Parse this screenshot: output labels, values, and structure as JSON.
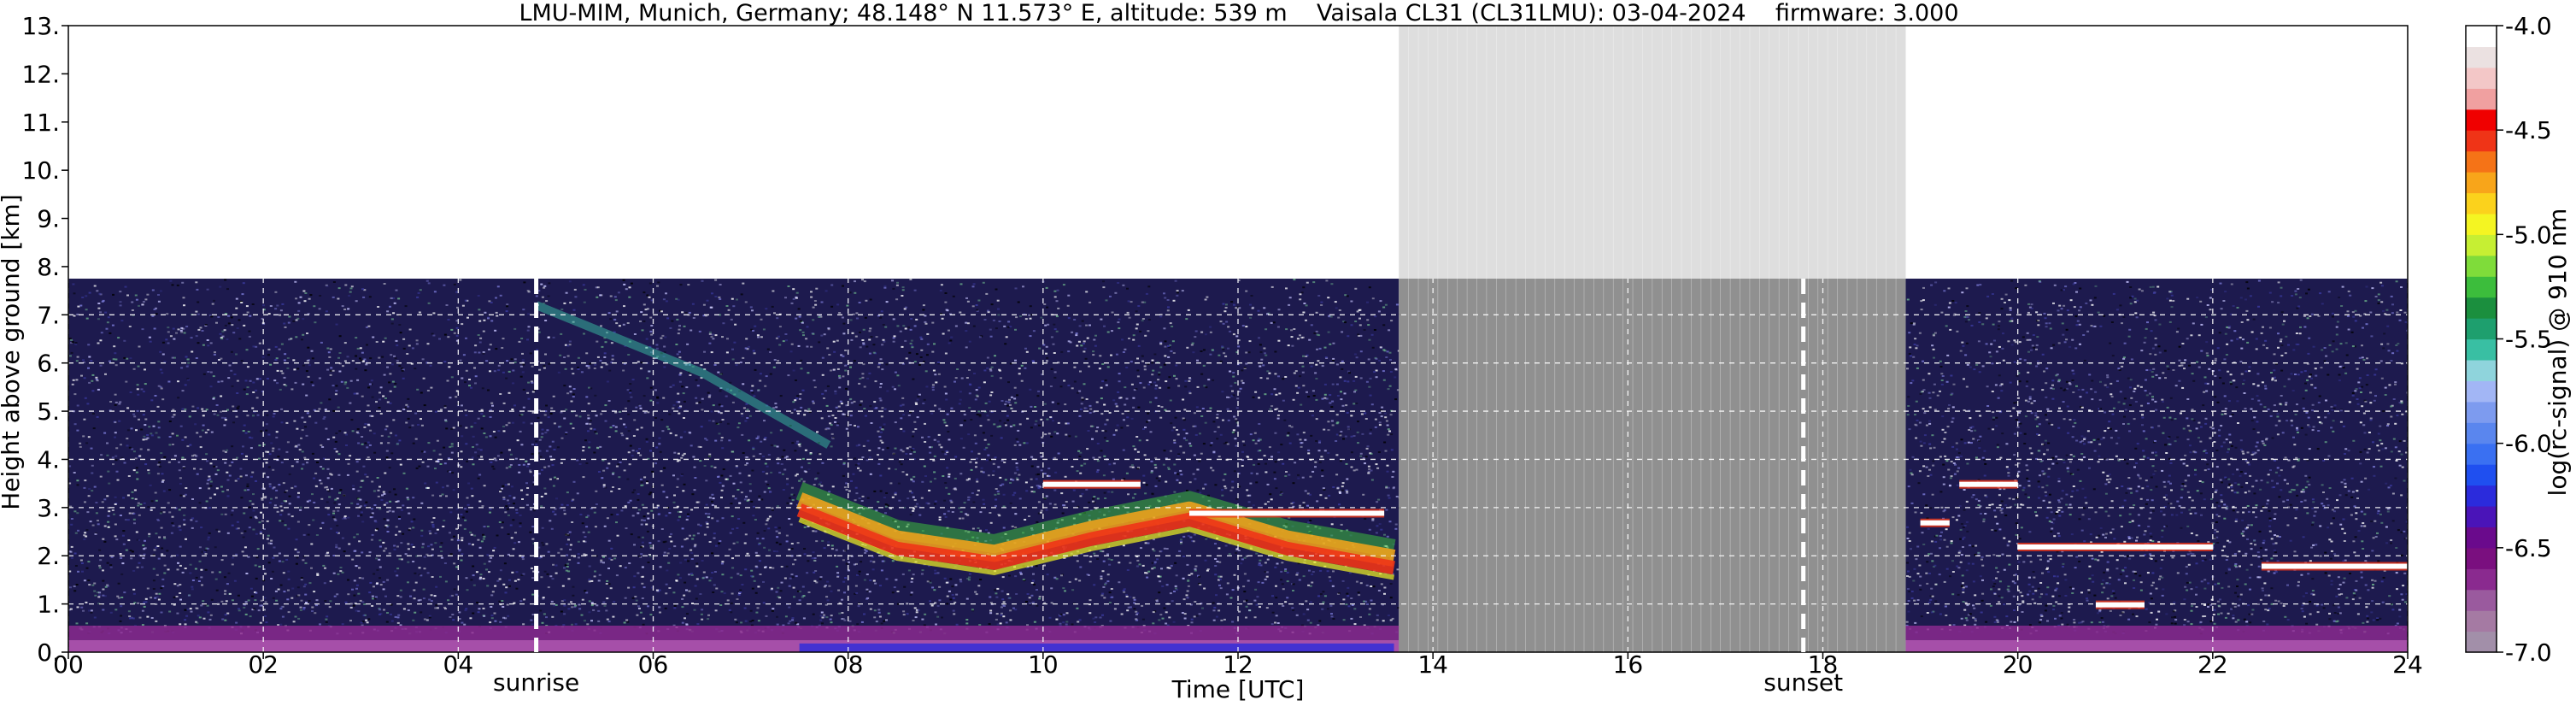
{
  "chart_data": {
    "type": "heatmap",
    "title": "LMU-MIM, Munich, Germany; 48.148° N 11.573° E, altitude: 539 m    Vaisala CL31 (CL31LMU): 03-04-2024    firmware: 3.000",
    "xlabel": "Time [UTC]",
    "ylabel": "Height above ground [km]",
    "xlim": [
      0,
      24
    ],
    "ylim": [
      0,
      13
    ],
    "x_ticks": [
      "00",
      "02",
      "04",
      "06",
      "08",
      "10",
      "12",
      "14",
      "16",
      "18",
      "20",
      "22",
      "24"
    ],
    "y_ticks": [
      "0.",
      "1.",
      "2.",
      "3.",
      "4.",
      "5.",
      "6.",
      "7.",
      "8.",
      "9.",
      "10.",
      "11.",
      "12.",
      "13."
    ],
    "grid": true,
    "instrument_range_top_km": 7.75,
    "no_data_interval": [
      13.65,
      18.85
    ],
    "markers": [
      {
        "label": "sunrise",
        "x": 4.8
      },
      {
        "label": "sunset",
        "x": 17.8
      }
    ],
    "features": {
      "boundary_layer": [
        [
          0,
          0.3
        ],
        [
          13.6,
          0.3
        ],
        [
          19.0,
          0.45
        ],
        [
          24,
          0.5
        ]
      ],
      "aerosol_layer": [
        [
          7.5,
          3.0
        ],
        [
          8.5,
          2.2
        ],
        [
          9.5,
          1.9
        ],
        [
          10.5,
          2.4
        ],
        [
          11.5,
          2.8
        ],
        [
          12.5,
          2.2
        ],
        [
          13.6,
          1.8
        ]
      ],
      "clouds": [
        {
          "x": [
            10.0,
            11.0
          ],
          "h": 3.5
        },
        {
          "x": [
            11.5,
            13.5
          ],
          "h": 2.9
        },
        {
          "x": [
            19.0,
            19.3
          ],
          "h": 2.7
        },
        {
          "x": [
            19.4,
            20.0
          ],
          "h": 3.5
        },
        {
          "x": [
            20.0,
            22.0
          ],
          "h": 2.2
        },
        {
          "x": [
            22.5,
            24.0
          ],
          "h": 1.8
        },
        {
          "x": [
            20.8,
            21.3
          ],
          "h": 1.0
        }
      ]
    },
    "colorbar": {
      "label": "log(rc-signal) @ 910 nm",
      "range": [
        -7.0,
        -4.0
      ],
      "ticks": [
        "-4.0",
        "-4.5",
        "-5.0",
        "-5.5",
        "-6.0",
        "-6.5",
        "-7.0"
      ],
      "colors": [
        "#a28fa9",
        "#a57aa3",
        "#9a5a9e",
        "#8a2a8f",
        "#7a0f7f",
        "#6a0a8c",
        "#4a14b8",
        "#2b2bdc",
        "#1f4ff0",
        "#3a70f2",
        "#5a86ee",
        "#7d9bef",
        "#a2b6f5",
        "#8fd4dc",
        "#39bfa3",
        "#1e9f6e",
        "#1b8f3e",
        "#3cbd3c",
        "#7fdc3a",
        "#c6ef33",
        "#f4f522",
        "#fbd21c",
        "#f8a51a",
        "#f57317",
        "#ef3417",
        "#f00000",
        "#f0a0a0",
        "#f3c7c7",
        "#ebe1e1",
        "#ffffff"
      ]
    }
  }
}
